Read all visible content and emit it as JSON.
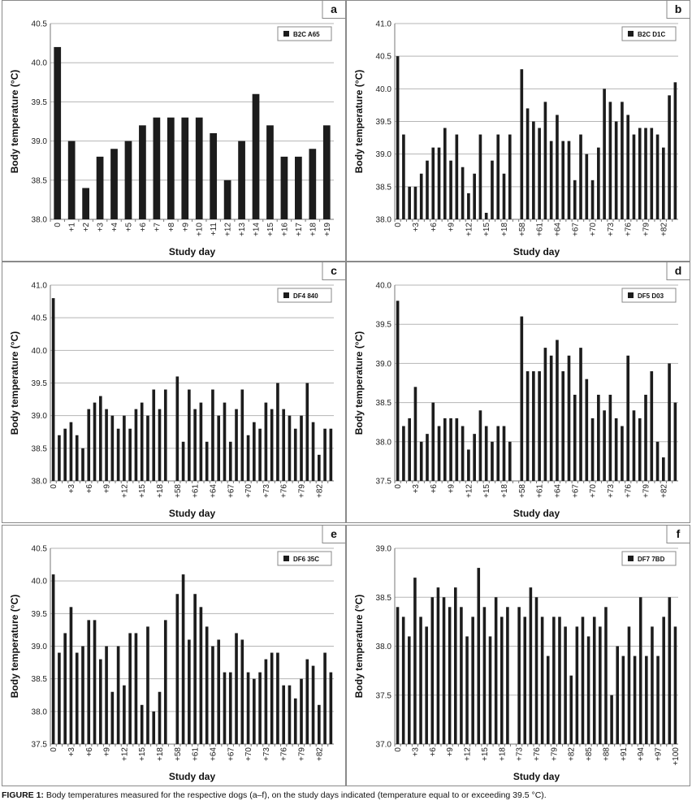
{
  "figure": {
    "ylabel": "Body temperature (°C)",
    "xlabel": "Study day"
  },
  "caption": {
    "label": "FIGURE 1:",
    "text": "Body temperatures measured for the respective dogs (a–f), on the study days indicated (temperature equal to or exceeding 39.5 °C)."
  },
  "chart_data": [
    {
      "letter": "a",
      "type": "bar",
      "legend": "B2C A65",
      "ylabel": "Body temperature (°C)",
      "xlabel": "Study day",
      "ylim": [
        38.0,
        40.5
      ],
      "yticks": [
        "38.0",
        "38.5",
        "39.0",
        "39.5",
        "40.0",
        "40.5"
      ],
      "categories": [
        "0",
        "+1",
        "+2",
        "+3",
        "+4",
        "+5",
        "+6",
        "+7",
        "+8",
        "+9",
        "+10",
        "+11",
        "+12",
        "+13",
        "+14",
        "+15",
        "+16",
        "+17",
        "+18",
        "+19"
      ],
      "tick_labels": [
        "0",
        "+1",
        "+2",
        "+3",
        "+4",
        "+5",
        "+6",
        "+7",
        "+8",
        "+9",
        "+10",
        "+11",
        "+12",
        "+13",
        "+14",
        "+15",
        "+16",
        "+17",
        "+18",
        "+19"
      ],
      "values": [
        40.2,
        39.0,
        38.4,
        38.8,
        38.9,
        39.0,
        39.2,
        39.3,
        39.3,
        39.3,
        39.3,
        39.1,
        38.5,
        39.0,
        39.6,
        39.2,
        38.8,
        38.8,
        38.9,
        39.2
      ]
    },
    {
      "letter": "b",
      "type": "bar",
      "legend": "B2C D1C",
      "ylabel": "Body temperature (°C)",
      "xlabel": "Study day",
      "ylim": [
        38.0,
        41.0
      ],
      "yticks": [
        "38.0",
        "38.5",
        "39.0",
        "39.5",
        "40.0",
        "40.5",
        "41.0"
      ],
      "tick_labels": [
        "0",
        "",
        "",
        "+3",
        "",
        "",
        "+6",
        "",
        "",
        "+9",
        "",
        "",
        "+12",
        "",
        "",
        "+15",
        "",
        "",
        "+18",
        "",
        "",
        "+58",
        "",
        "",
        "+61",
        "",
        "",
        "+64",
        "",
        "",
        "+67",
        "",
        "",
        "+70",
        "",
        "",
        "+73",
        "",
        "",
        "+76",
        "",
        "",
        "+79",
        "",
        "",
        "+82",
        "",
        ""
      ],
      "values": [
        40.5,
        39.3,
        38.5,
        38.5,
        38.7,
        38.9,
        39.1,
        39.1,
        39.4,
        38.9,
        39.3,
        38.8,
        38.4,
        38.7,
        39.3,
        38.1,
        38.9,
        39.3,
        38.7,
        39.3,
        null,
        40.3,
        39.7,
        39.5,
        39.4,
        39.8,
        39.2,
        39.6,
        39.2,
        39.2,
        38.6,
        39.3,
        39.0,
        38.6,
        39.1,
        40.0,
        39.8,
        39.5,
        39.8,
        39.6,
        39.3,
        39.4,
        39.4,
        39.4,
        39.3,
        39.1,
        39.9,
        40.1
      ]
    },
    {
      "letter": "c",
      "type": "bar",
      "legend": "DF4 840",
      "ylabel": "Body temperature (°C)",
      "xlabel": "Study day",
      "ylim": [
        38.0,
        41.0
      ],
      "yticks": [
        "38.0",
        "38.5",
        "39.0",
        "39.5",
        "40.0",
        "40.5",
        "41.0"
      ],
      "tick_labels": [
        "0",
        "",
        "",
        "+3",
        "",
        "",
        "+6",
        "",
        "",
        "+9",
        "",
        "",
        "+12",
        "",
        "",
        "+15",
        "",
        "",
        "+18",
        "",
        "",
        "+58",
        "",
        "",
        "+61",
        "",
        "",
        "+64",
        "",
        "",
        "+67",
        "",
        "",
        "+70",
        "",
        "",
        "+73",
        "",
        "",
        "+76",
        "",
        "",
        "+79",
        "",
        "",
        "+82",
        "",
        ""
      ],
      "values": [
        40.8,
        38.7,
        38.8,
        38.9,
        38.7,
        38.5,
        39.1,
        39.2,
        39.3,
        39.1,
        39.0,
        38.8,
        39.0,
        38.8,
        39.1,
        39.2,
        39.0,
        39.4,
        39.1,
        39.4,
        null,
        39.6,
        38.6,
        39.4,
        39.1,
        39.2,
        38.6,
        39.4,
        39.0,
        39.2,
        38.6,
        39.1,
        39.4,
        38.7,
        38.9,
        38.8,
        39.2,
        39.1,
        39.5,
        39.1,
        39.0,
        38.8,
        39.0,
        39.5,
        38.9,
        38.4,
        38.8,
        38.8
      ]
    },
    {
      "letter": "d",
      "type": "bar",
      "legend": "DF5 D03",
      "ylabel": "Body temperature (°C)",
      "xlabel": "Study day",
      "ylim": [
        37.5,
        40.0
      ],
      "yticks": [
        "37.5",
        "38.0",
        "38.5",
        "39.0",
        "39.5",
        "40.0"
      ],
      "tick_labels": [
        "0",
        "",
        "",
        "+3",
        "",
        "",
        "+6",
        "",
        "",
        "+9",
        "",
        "",
        "+12",
        "",
        "",
        "+15",
        "",
        "",
        "+18",
        "",
        "",
        "+58",
        "",
        "",
        "+61",
        "",
        "",
        "+64",
        "",
        "",
        "+67",
        "",
        "",
        "+70",
        "",
        "",
        "+73",
        "",
        "",
        "+76",
        "",
        "",
        "+79",
        "",
        "",
        "+82",
        "",
        ""
      ],
      "values": [
        39.8,
        38.2,
        38.3,
        38.7,
        38.0,
        38.1,
        38.5,
        38.2,
        38.3,
        38.3,
        38.3,
        38.2,
        37.9,
        38.1,
        38.4,
        38.2,
        38.0,
        38.2,
        38.2,
        38.0,
        null,
        39.6,
        38.9,
        38.9,
        38.9,
        39.2,
        39.1,
        39.3,
        38.9,
        39.1,
        38.6,
        39.2,
        38.8,
        38.3,
        38.6,
        38.4,
        38.6,
        38.3,
        38.2,
        39.1,
        38.4,
        38.3,
        38.6,
        38.9,
        38.0,
        37.8,
        39.0,
        38.5
      ]
    },
    {
      "letter": "e",
      "type": "bar",
      "legend": "DF6 35C",
      "ylabel": "Body temperature (°C)",
      "xlabel": "Study day",
      "ylim": [
        37.5,
        40.5
      ],
      "yticks": [
        "37.5",
        "38.0",
        "38.5",
        "39.0",
        "39.5",
        "40.0",
        "40.5"
      ],
      "tick_labels": [
        "0",
        "",
        "",
        "+3",
        "",
        "",
        "+6",
        "",
        "",
        "+9",
        "",
        "",
        "+12",
        "",
        "",
        "+15",
        "",
        "",
        "+18",
        "",
        "",
        "+58",
        "",
        "",
        "+61",
        "",
        "",
        "+64",
        "",
        "",
        "+67",
        "",
        "",
        "+70",
        "",
        "",
        "+73",
        "",
        "",
        "+76",
        "",
        "",
        "+79",
        "",
        "",
        "+82",
        "",
        ""
      ],
      "values": [
        40.1,
        38.9,
        39.2,
        39.6,
        38.9,
        39.0,
        39.4,
        39.4,
        38.8,
        39.0,
        38.3,
        39.0,
        38.4,
        39.2,
        39.2,
        38.1,
        39.3,
        38.0,
        38.3,
        39.4,
        null,
        39.8,
        40.1,
        39.1,
        39.8,
        39.6,
        39.3,
        39.0,
        39.1,
        38.6,
        38.6,
        39.2,
        39.1,
        38.6,
        38.5,
        38.6,
        38.8,
        38.9,
        38.9,
        38.4,
        38.4,
        38.2,
        38.5,
        38.8,
        38.7,
        38.1,
        38.9,
        38.6
      ]
    },
    {
      "letter": "f",
      "type": "bar",
      "legend": "DF7 7BD",
      "ylabel": "Body temperature (°C)",
      "xlabel": "Study day",
      "ylim": [
        37.0,
        39.0
      ],
      "yticks": [
        "37.0",
        "37.5",
        "38.0",
        "38.5",
        "39.0"
      ],
      "tick_labels": [
        "0",
        "",
        "",
        "+3",
        "",
        "",
        "+6",
        "",
        "",
        "+9",
        "",
        "",
        "+12",
        "",
        "",
        "+15",
        "",
        "",
        "+18",
        "",
        "",
        "+73",
        "",
        "",
        "+76",
        "",
        "",
        "+79",
        "",
        "",
        "+82",
        "",
        "",
        "+85",
        "",
        "",
        "+88",
        "",
        "",
        "+91",
        "",
        "",
        "+94",
        "",
        "",
        "+97",
        "",
        "",
        "+100",
        ""
      ],
      "values": [
        38.4,
        38.3,
        38.1,
        38.7,
        38.3,
        38.2,
        38.5,
        38.6,
        38.5,
        38.4,
        38.6,
        38.4,
        38.1,
        38.3,
        38.8,
        38.4,
        38.1,
        38.5,
        38.3,
        38.4,
        null,
        38.4,
        38.3,
        38.6,
        38.5,
        38.3,
        37.9,
        38.3,
        38.3,
        38.2,
        37.7,
        38.2,
        38.3,
        38.1,
        38.3,
        38.2,
        38.4,
        37.5,
        38.0,
        37.9,
        38.2,
        37.9,
        38.5,
        37.9,
        38.2,
        37.9,
        38.3,
        38.5,
        38.2
      ]
    }
  ]
}
